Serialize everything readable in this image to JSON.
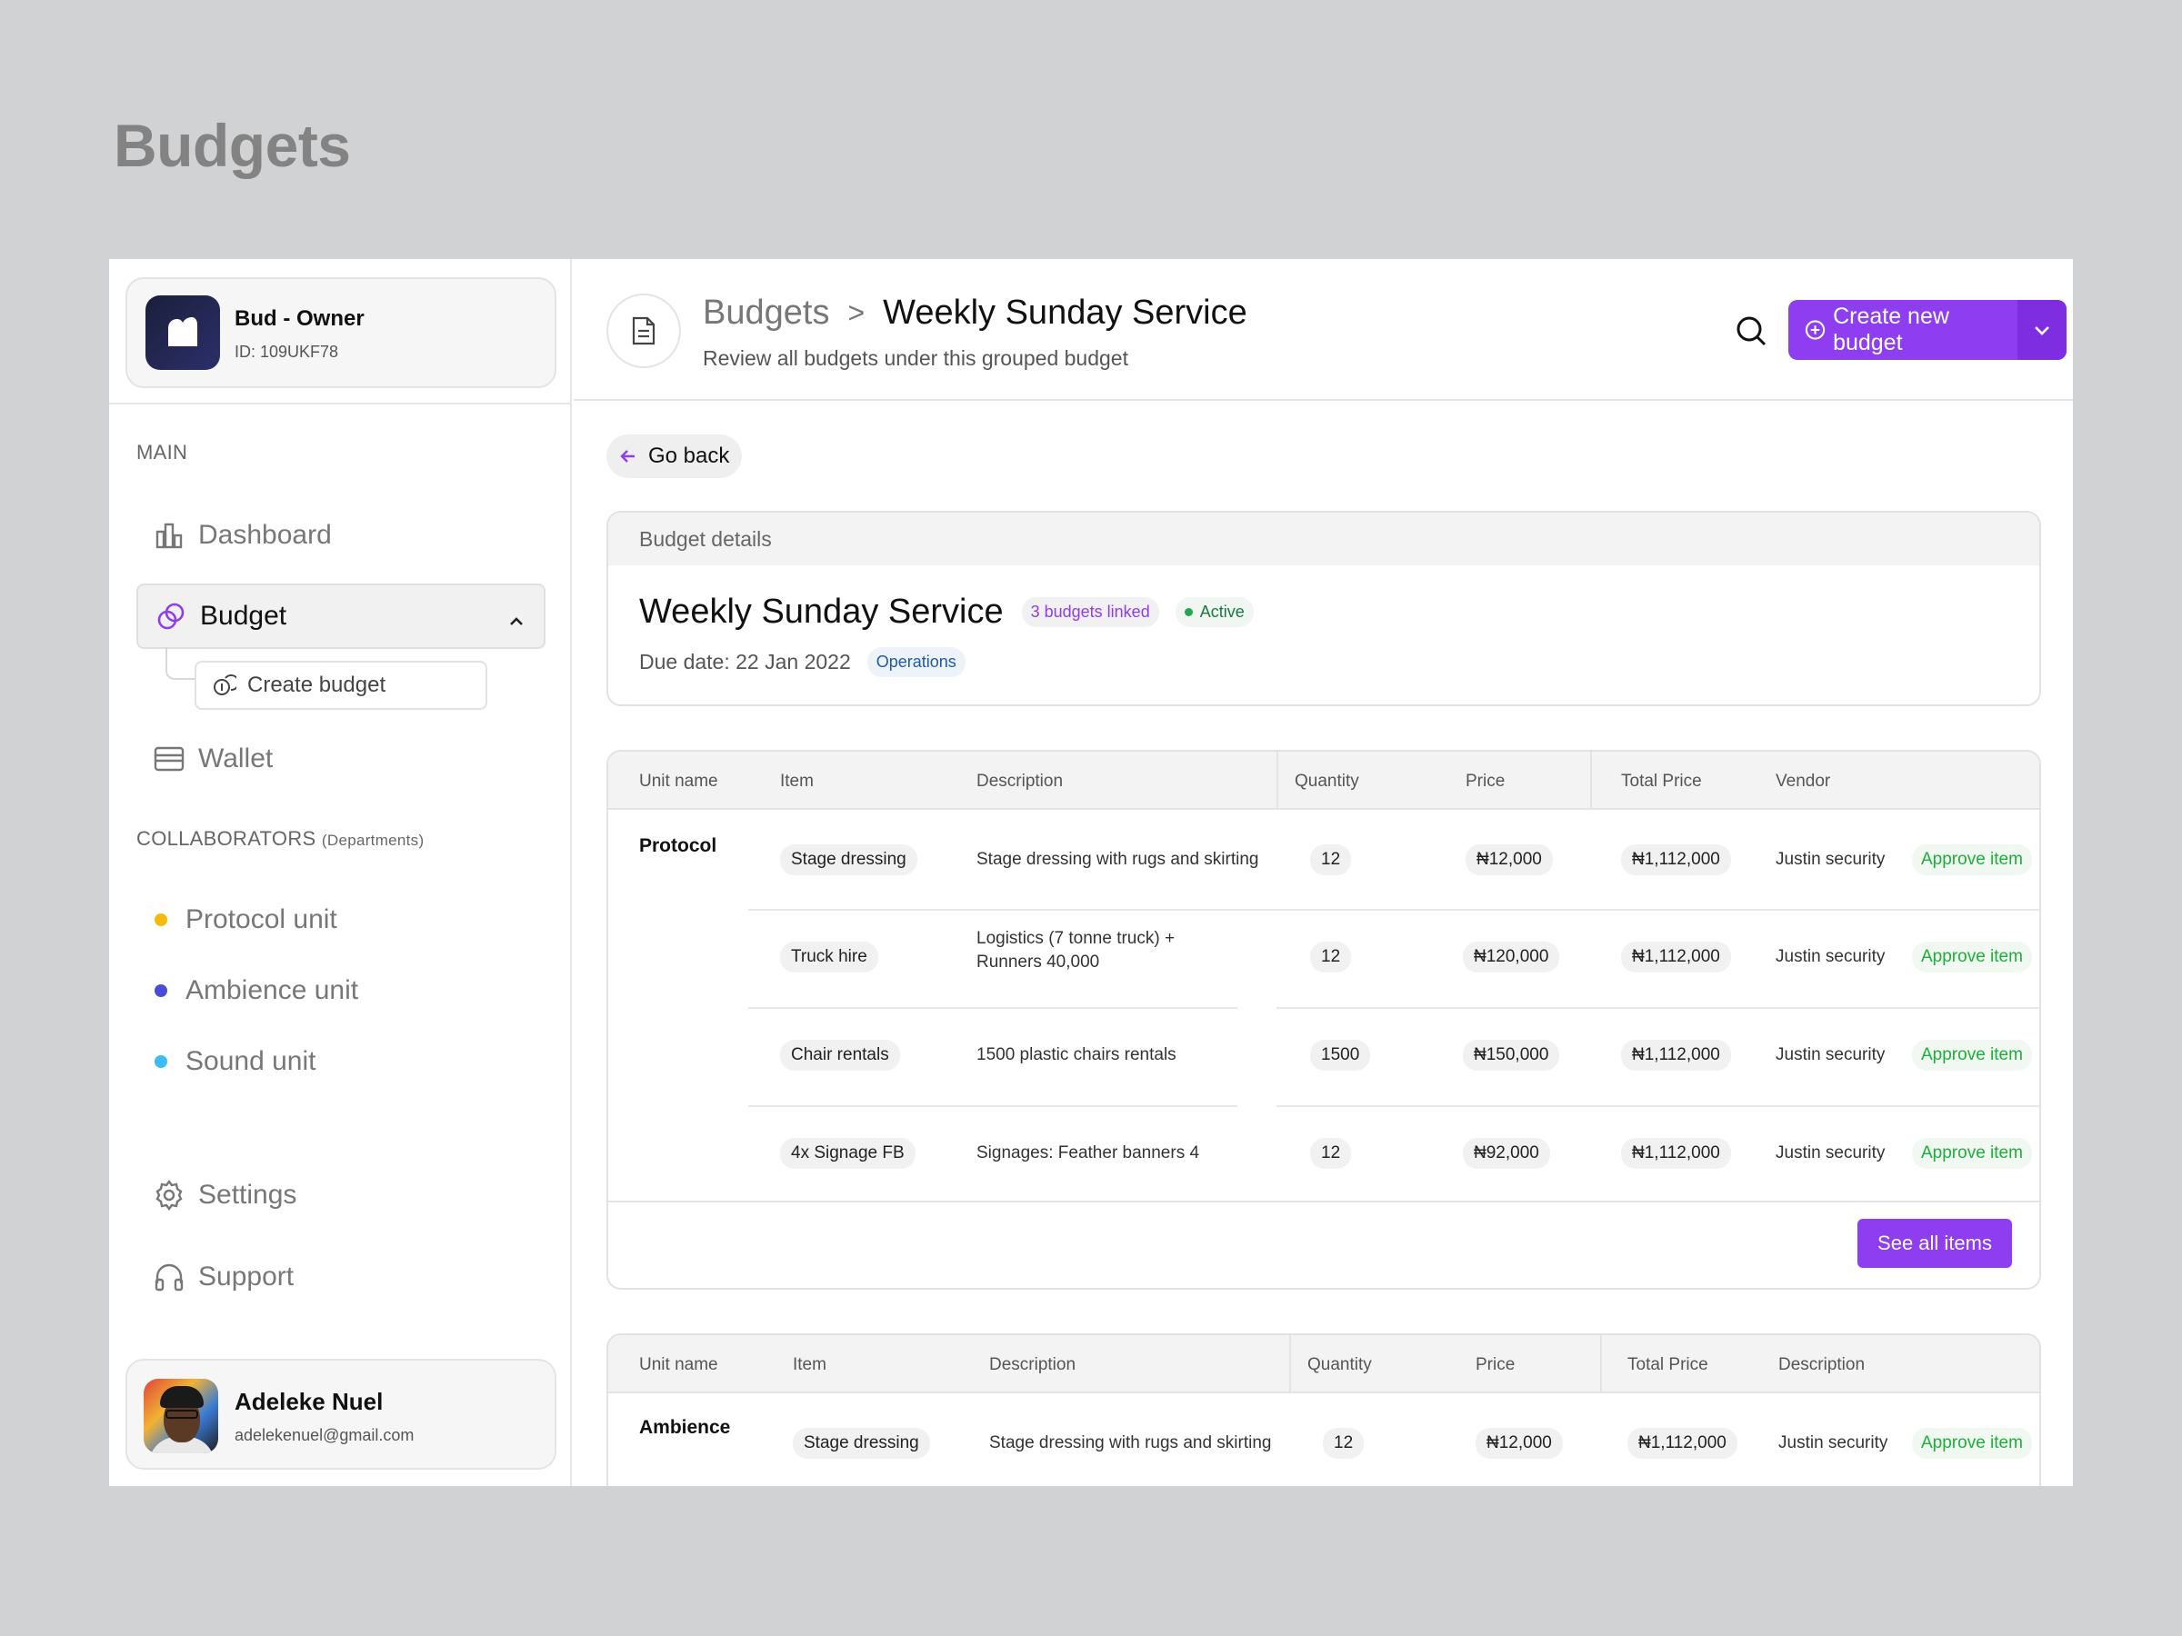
{
  "page_heading": "Budgets",
  "colors": {
    "accent": "#8e3df0",
    "approve_green": "#1fae3c",
    "protocol": "#f5b90f",
    "ambience": "#4a4bd6",
    "sound": "#3ebcf2"
  },
  "org": {
    "name": "Bud - Owner",
    "id": "ID: 109UKF78"
  },
  "sidebar": {
    "main_label": "MAIN",
    "items": [
      {
        "label": "Dashboard",
        "icon": "bar-chart-icon"
      },
      {
        "label": "Budget",
        "icon": "budget-rings-icon"
      },
      {
        "label": "Wallet",
        "icon": "wallet-icon"
      }
    ],
    "budget_sub": {
      "label": "Create budget",
      "icon": "coins-icon"
    },
    "collab_label": "COLLABORATORS",
    "collab_note": "(Departments)",
    "departments": [
      {
        "label": "Protocol unit"
      },
      {
        "label": "Ambience unit"
      },
      {
        "label": "Sound unit"
      }
    ],
    "settings": "Settings",
    "support": "Support"
  },
  "user": {
    "name": "Adeleke Nuel",
    "email": "adelekenuel@gmail.com"
  },
  "header": {
    "crumb_root": "Budgets",
    "crumb_sep": ">",
    "crumb_current": "Weekly Sunday Service",
    "subtitle": "Review all budgets under this grouped budget",
    "create_label": "Create new budget"
  },
  "go_back": "Go back",
  "details": {
    "heading": "Budget details",
    "title": "Weekly Sunday Service",
    "linked": "3 budgets linked",
    "status": "Active",
    "due": "Due date: 22 Jan 2022",
    "dept": "Operations"
  },
  "table1": {
    "headers": [
      "Unit name",
      "Item",
      "Description",
      "Quantity",
      "Price",
      "Total Price",
      "Vendor"
    ],
    "unit": "Protocol",
    "rows": [
      {
        "item": "Stage dressing",
        "desc1": "Stage dressing with rugs and skirting",
        "desc2": "",
        "qty": "12",
        "price": "₦12,000",
        "total": "₦1,112,000",
        "vendor": "Justin security",
        "action": "Approve item"
      },
      {
        "item": "Truck hire",
        "desc1": "Logistics (7 tonne truck) +",
        "desc2": "Runners 40,000",
        "qty": "12",
        "price": "₦120,000",
        "total": "₦1,112,000",
        "vendor": "Justin security",
        "action": "Approve item"
      },
      {
        "item": "Chair rentals",
        "desc1": "1500 plastic chairs rentals",
        "desc2": "",
        "qty": "1500",
        "price": "₦150,000",
        "total": "₦1,112,000",
        "vendor": "Justin security",
        "action": "Approve item"
      },
      {
        "item": "4x Signage FB",
        "desc1": "Signages: Feather banners 4",
        "desc2": "",
        "qty": "12",
        "price": "₦92,000",
        "total": "₦1,112,000",
        "vendor": "Justin security",
        "action": "Approve item"
      }
    ],
    "see_all": "See all items"
  },
  "table2": {
    "headers": [
      "Unit name",
      "Item",
      "Description",
      "Quantity",
      "Price",
      "Total Price",
      "Description"
    ],
    "unit": "Ambience",
    "rows": [
      {
        "item": "Stage dressing",
        "desc1": "Stage dressing with rugs and skirting",
        "qty": "12",
        "price": "₦12,000",
        "total": "₦1,112,000",
        "vendor": "Justin security",
        "action": "Approve item"
      }
    ]
  }
}
